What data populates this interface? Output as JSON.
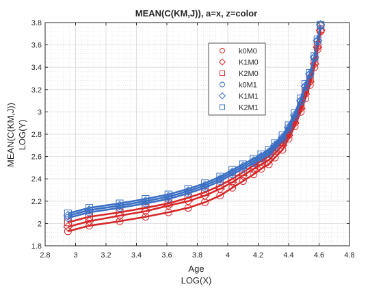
{
  "chart_data": {
    "type": "line",
    "title": "MEAN(C(KM,J)), a=x, z=color",
    "xlabel_lines": [
      "Age",
      "LOG(X)"
    ],
    "ylabel_lines": [
      "MEAN(C(KM,J))",
      "LOG(Y)"
    ],
    "xlim": [
      2.8,
      4.8
    ],
    "ylim": [
      1.8,
      3.8
    ],
    "xticks": [
      2.8,
      3.0,
      3.2,
      3.4,
      3.6,
      3.8,
      4.0,
      4.2,
      4.4,
      4.6,
      4.8
    ],
    "xtick_labels": [
      "2.8",
      "3",
      "3.2",
      "3.4",
      "3.6",
      "3.8",
      "4",
      "4.2",
      "4.4",
      "4.6",
      "4.8"
    ],
    "yticks": [
      1.8,
      2.0,
      2.2,
      2.4,
      2.6,
      2.8,
      3.0,
      3.2,
      3.4,
      3.6,
      3.8
    ],
    "ytick_labels": [
      "1.8",
      "2",
      "2.2",
      "2.4",
      "2.6",
      "2.8",
      "3",
      "3.2",
      "3.4",
      "3.6",
      "3.8"
    ],
    "grid": true,
    "minor_grid": true,
    "legend_location": "upper-right-inside",
    "colors": {
      "M0": "#d62728",
      "M1": "#3a6fc4"
    },
    "x": [
      2.95,
      3.09,
      3.29,
      3.46,
      3.61,
      3.74,
      3.85,
      3.95,
      4.03,
      4.1,
      4.17,
      4.22,
      4.27,
      4.31,
      4.36,
      4.4,
      4.44,
      4.48,
      4.51,
      4.54,
      4.57,
      4.59,
      4.61
    ],
    "series": [
      {
        "name": "k0M0",
        "marker": "circle",
        "color": "#d62728",
        "values": [
          1.93,
          1.98,
          2.02,
          2.06,
          2.1,
          2.14,
          2.19,
          2.25,
          2.32,
          2.38,
          2.44,
          2.49,
          2.53,
          2.59,
          2.66,
          2.76,
          2.87,
          3.0,
          3.12,
          3.24,
          3.4,
          3.56,
          3.72
        ]
      },
      {
        "name": "K1M0",
        "marker": "diamond",
        "color": "#d62728",
        "values": [
          1.97,
          2.02,
          2.07,
          2.11,
          2.16,
          2.2,
          2.25,
          2.31,
          2.37,
          2.43,
          2.49,
          2.53,
          2.57,
          2.63,
          2.7,
          2.79,
          2.9,
          3.03,
          3.16,
          3.27,
          3.43,
          3.58,
          3.73
        ]
      },
      {
        "name": "K2M0",
        "marker": "square",
        "color": "#d62728",
        "values": [
          2.01,
          2.06,
          2.1,
          2.14,
          2.18,
          2.23,
          2.28,
          2.34,
          2.4,
          2.46,
          2.52,
          2.56,
          2.6,
          2.66,
          2.73,
          2.82,
          2.93,
          3.06,
          3.19,
          3.3,
          3.45,
          3.6,
          3.74
        ]
      },
      {
        "name": "k0M1",
        "marker": "circle",
        "color": "#3a6fc4",
        "values": [
          2.05,
          2.1,
          2.14,
          2.18,
          2.22,
          2.27,
          2.32,
          2.38,
          2.44,
          2.49,
          2.54,
          2.58,
          2.62,
          2.68,
          2.75,
          2.84,
          2.95,
          3.09,
          3.22,
          3.33,
          3.48,
          3.63,
          3.77
        ]
      },
      {
        "name": "K1M1",
        "marker": "diamond",
        "color": "#3a6fc4",
        "values": [
          2.07,
          2.12,
          2.16,
          2.2,
          2.24,
          2.29,
          2.34,
          2.4,
          2.46,
          2.51,
          2.56,
          2.6,
          2.64,
          2.7,
          2.77,
          2.86,
          2.97,
          3.1,
          3.23,
          3.34,
          3.49,
          3.64,
          3.78
        ]
      },
      {
        "name": "K2M1",
        "marker": "square",
        "color": "#3a6fc4",
        "values": [
          2.09,
          2.14,
          2.18,
          2.22,
          2.26,
          2.31,
          2.36,
          2.42,
          2.48,
          2.53,
          2.58,
          2.62,
          2.66,
          2.72,
          2.79,
          2.88,
          2.99,
          3.12,
          3.25,
          3.35,
          3.5,
          3.65,
          3.78
        ]
      }
    ]
  }
}
